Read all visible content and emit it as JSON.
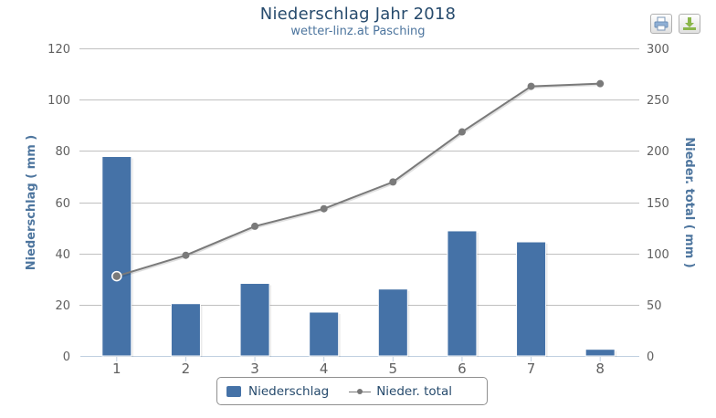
{
  "title": "Niederschlag Jahr 2018",
  "subtitle": "wetter-linz.at Pasching",
  "export": {
    "print_label": "print-icon",
    "download_label": "download-icon"
  },
  "colors": {
    "bar": "#4572A7",
    "line": "#7a7a7a",
    "title": "#274b6d",
    "axis_title": "#4d759e",
    "grid": "#c0c0c0"
  },
  "legend": {
    "items": [
      {
        "label": "Niederschlag",
        "symbol": "bar-swatch"
      },
      {
        "label": "Nieder. total",
        "symbol": "line-marker"
      }
    ]
  },
  "axes": {
    "left": {
      "title": "Niederschlag ( mm )",
      "ticks": [
        "0",
        "20",
        "40",
        "60",
        "80",
        "100",
        "120"
      ]
    },
    "right": {
      "title": "Nieder. total ( mm )",
      "ticks": [
        "0",
        "50",
        "100",
        "150",
        "200",
        "250",
        "300"
      ]
    },
    "x": {
      "ticks": [
        "1",
        "2",
        "3",
        "4",
        "5",
        "6",
        "7",
        "8"
      ]
    }
  },
  "chart_data": {
    "type": "bar",
    "title": "Niederschlag Jahr 2018",
    "subtitle": "wetter-linz.at Pasching",
    "xlabel": "",
    "ylabel": "Niederschlag ( mm )",
    "y2label": "Nieder. total ( mm )",
    "categories": [
      "1",
      "2",
      "3",
      "4",
      "5",
      "6",
      "7",
      "8"
    ],
    "series": [
      {
        "name": "Niederschlag",
        "type": "bar",
        "axis": "left",
        "values": [
          77.8,
          20.4,
          28.3,
          17.1,
          26.1,
          48.8,
          44.5,
          2.6
        ]
      },
      {
        "name": "Nieder. total",
        "type": "line",
        "axis": "right",
        "values": [
          77.8,
          98.2,
          126.5,
          143.6,
          169.7,
          218.5,
          263.0,
          265.6
        ]
      }
    ],
    "ylim": [
      0,
      120
    ],
    "y2lim": [
      0,
      300
    ],
    "grid": true,
    "legend_position": "bottom"
  }
}
